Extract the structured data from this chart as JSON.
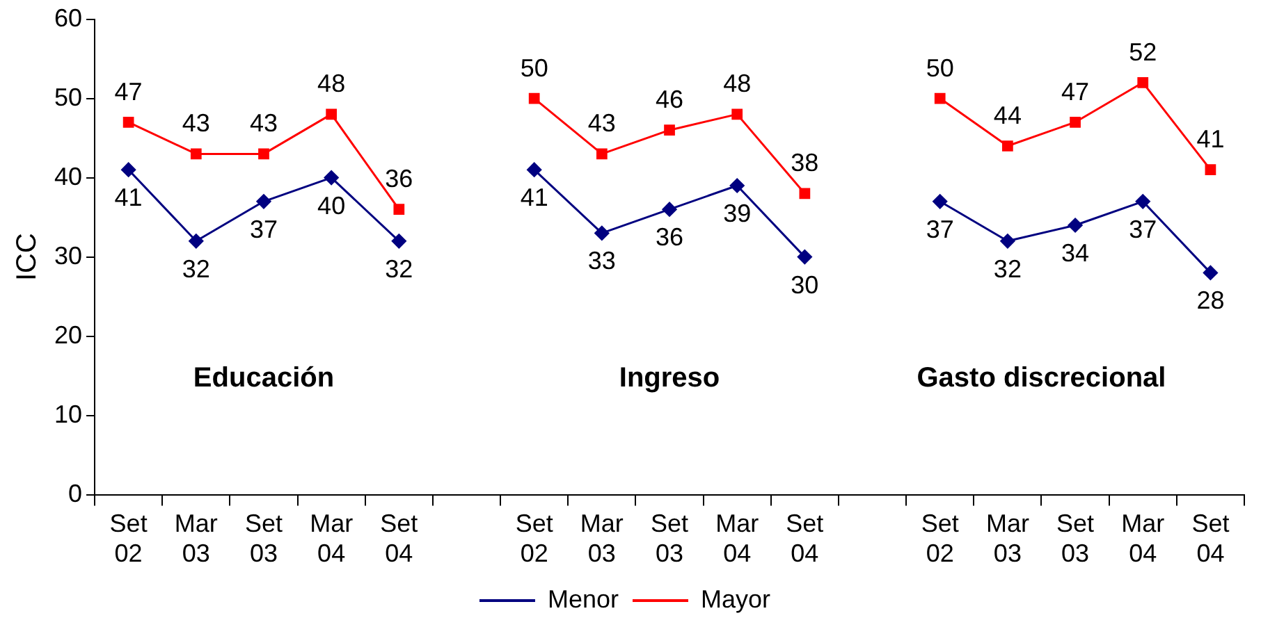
{
  "chart_data": {
    "type": "line",
    "ylabel": "ICC",
    "categories": [
      "Set 02",
      "Mar 03",
      "Set 03",
      "Mar 04",
      "Set 04",
      null,
      "Set 02",
      "Mar 03",
      "Set 03",
      "Mar 04",
      "Set 04",
      null,
      "Set 02",
      "Mar 03",
      "Set 03",
      "Mar 04",
      "Set 04"
    ],
    "series": [
      {
        "name": "Menor",
        "color": "#000080",
        "marker": "diamond",
        "values": [
          41,
          32,
          37,
          40,
          32,
          null,
          41,
          33,
          36,
          39,
          30,
          null,
          37,
          32,
          34,
          37,
          28
        ]
      },
      {
        "name": "Mayor",
        "color": "#ff0000",
        "marker": "square",
        "values": [
          47,
          43,
          43,
          48,
          36,
          null,
          50,
          43,
          46,
          48,
          38,
          null,
          50,
          44,
          47,
          52,
          41
        ]
      }
    ],
    "ylim": [
      0,
      60
    ],
    "yticks": [
      0,
      10,
      20,
      30,
      40,
      50,
      60
    ],
    "grid": false,
    "legend": "bottom",
    "data_labels": true,
    "annotations": [
      "Educación",
      "Ingreso",
      "Gasto discrecional"
    ]
  }
}
